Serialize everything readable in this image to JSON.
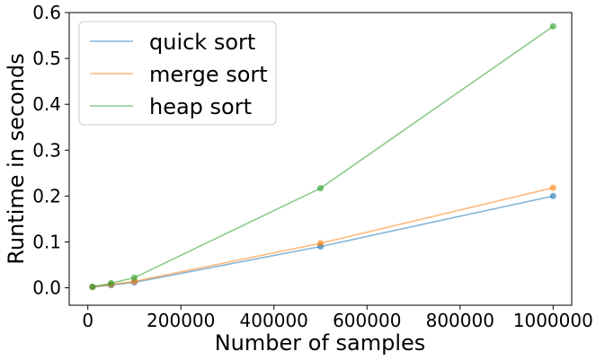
{
  "chart_data": {
    "type": "line",
    "title": "",
    "xlabel": "Number of samples",
    "ylabel": "Runtime in seconds",
    "x": [
      10000,
      50000,
      100000,
      500000,
      1000000
    ],
    "xlim": [
      -40000,
      1040000
    ],
    "ylim": [
      -0.038,
      0.6
    ],
    "xticks": [
      0,
      200000,
      400000,
      600000,
      800000,
      1000000
    ],
    "xtick_labels": [
      "0",
      "200000",
      "400000",
      "600000",
      "800000",
      "1000000"
    ],
    "yticks": [
      0.0,
      0.1,
      0.2,
      0.3,
      0.4,
      0.5,
      0.6
    ],
    "ytick_labels": [
      "0.0",
      "0.1",
      "0.2",
      "0.3",
      "0.4",
      "0.5",
      "0.6"
    ],
    "grid": false,
    "legend_position": "top-left",
    "series": [
      {
        "name": "quick sort",
        "color": "#1f77b4",
        "values": [
          0.002,
          0.006,
          0.012,
          0.09,
          0.2
        ]
      },
      {
        "name": "merge sort",
        "color": "#ff7f0e",
        "values": [
          0.002,
          0.007,
          0.014,
          0.097,
          0.218
        ]
      },
      {
        "name": "heap sort",
        "color": "#2ca02c",
        "values": [
          0.002,
          0.01,
          0.022,
          0.217,
          0.57
        ]
      }
    ]
  }
}
